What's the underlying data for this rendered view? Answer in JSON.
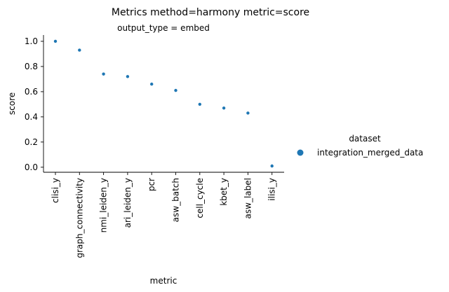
{
  "chart_data": {
    "type": "scatter",
    "title": "Metrics method=harmony metric=score",
    "subtitle": "output_type = embed",
    "xlabel": "metric",
    "ylabel": "score",
    "categories": [
      "clisi_y",
      "graph_connectivity",
      "nmi_leiden_y",
      "ari_leiden_y",
      "pcr",
      "asw_batch",
      "cell_cycle",
      "kbet_y",
      "asw_label",
      "ilisi_y"
    ],
    "series": [
      {
        "name": "integration_merged_data",
        "color": "#1f77b4",
        "values": [
          1.0,
          0.93,
          0.74,
          0.72,
          0.66,
          0.61,
          0.5,
          0.47,
          0.43,
          0.01
        ]
      }
    ],
    "yticks": [
      "0.0",
      "0.2",
      "0.4",
      "0.6",
      "0.8",
      "1.0"
    ],
    "ylim": [
      -0.04,
      1.05
    ],
    "grid": false,
    "legend": {
      "title": "dataset",
      "placement": "right"
    }
  }
}
